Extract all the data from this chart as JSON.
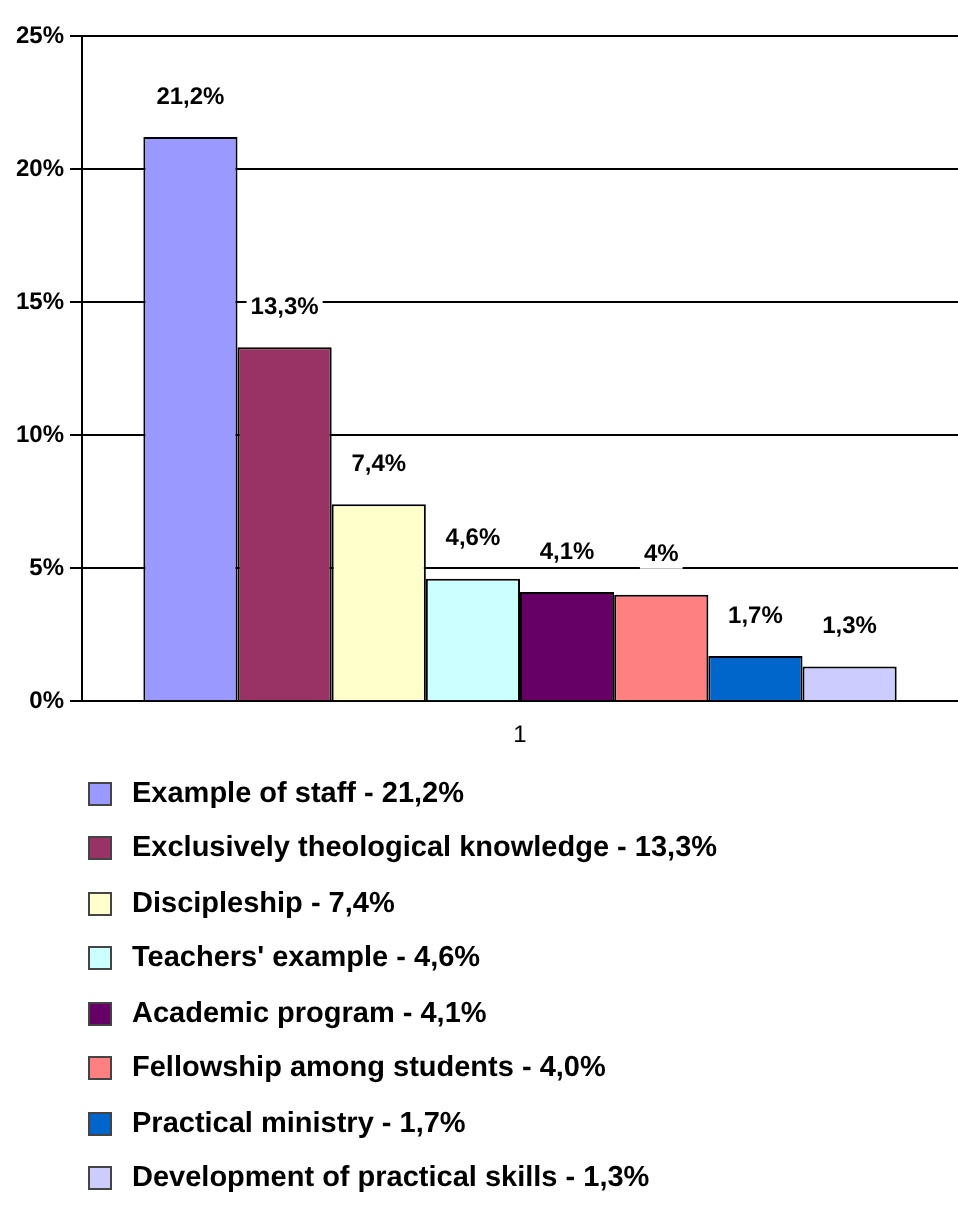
{
  "chart_data": {
    "type": "bar",
    "categories": [
      "1"
    ],
    "series": [
      {
        "name": "Example of staff - 21,2%",
        "color": "#9999ff",
        "values": [
          21.2
        ],
        "value_labels": [
          "21,2%"
        ]
      },
      {
        "name": "Exclusively theological knowledge - 13,3%",
        "color": "#993366",
        "values": [
          13.3
        ],
        "value_labels": [
          "13,3%"
        ]
      },
      {
        "name": "Discipleship - 7,4%",
        "color": "#ffffcc",
        "values": [
          7.4
        ],
        "value_labels": [
          "7,4%"
        ]
      },
      {
        "name": "Teachers' example - 4,6%",
        "color": "#ccffff",
        "values": [
          4.6
        ],
        "value_labels": [
          "4,6%"
        ]
      },
      {
        "name": "Academic program - 4,1%",
        "color": "#660066",
        "values": [
          4.1
        ],
        "value_labels": [
          "4,1%"
        ]
      },
      {
        "name": "Fellowship among students - 4,0%",
        "color": "#ff8080",
        "values": [
          4.0
        ],
        "value_labels": [
          "4%"
        ]
      },
      {
        "name": "Practical ministry - 1,7%",
        "color": "#0066cc",
        "values": [
          1.7
        ],
        "value_labels": [
          "1,7%"
        ]
      },
      {
        "name": "Development of practical skills - 1,3%",
        "color": "#ccccff",
        "values": [
          1.3
        ],
        "value_labels": [
          "1,3%"
        ]
      }
    ],
    "ylim": [
      0,
      25
    ],
    "yticks": [
      {
        "value": 0,
        "label": "0%"
      },
      {
        "value": 5,
        "label": "5%"
      },
      {
        "value": 10,
        "label": "10%"
      },
      {
        "value": 15,
        "label": "15%"
      },
      {
        "value": 20,
        "label": "20%"
      },
      {
        "value": 25,
        "label": "25%"
      }
    ],
    "grid": "y",
    "legend": "bottom"
  }
}
